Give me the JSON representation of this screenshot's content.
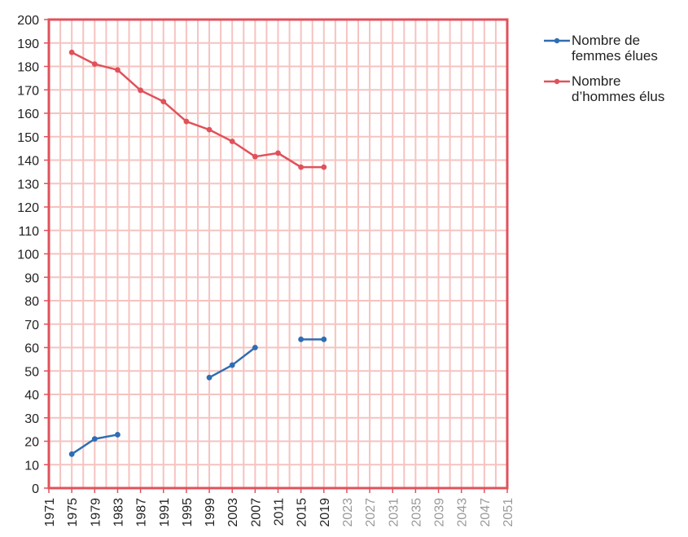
{
  "chart_data": {
    "type": "line",
    "title": "",
    "xlabel": "",
    "ylabel": "",
    "xlim": [
      1971,
      2051
    ],
    "ylim": [
      0,
      200
    ],
    "x_ticks": [
      "1971",
      "1975",
      "1979",
      "1983",
      "1987",
      "1991",
      "1995",
      "1999",
      "2003",
      "2007",
      "2011",
      "2015",
      "2019",
      "2023",
      "2027",
      "2031",
      "2035",
      "2039",
      "2043",
      "2047",
      "2051"
    ],
    "x_ticks_muted_from": 2023,
    "y_ticks": [
      "0",
      "10",
      "20",
      "30",
      "40",
      "50",
      "60",
      "70",
      "80",
      "90",
      "100",
      "110",
      "120",
      "130",
      "140",
      "150",
      "160",
      "170",
      "180",
      "190",
      "200"
    ],
    "grid": true,
    "legend_position": "right",
    "series": [
      {
        "name": "Nombre de femmes élues",
        "color": "#2f6db3",
        "segments": [
          [
            [
              1975,
              14.5
            ],
            [
              1979,
              21
            ],
            [
              1983,
              22.8
            ]
          ],
          [
            [
              1999,
              47.2
            ],
            [
              2003,
              52.5
            ],
            [
              2007,
              60
            ]
          ],
          [
            [
              2015,
              63.5
            ],
            [
              2019,
              63.5
            ]
          ]
        ]
      },
      {
        "name": "Nombre d’hommes élus",
        "color": "#e0525b",
        "segments": [
          [
            [
              1975,
              186
            ],
            [
              1979,
              181
            ],
            [
              1983,
              178.5
            ],
            [
              1987,
              169.8
            ],
            [
              1991,
              165
            ],
            [
              1995,
              156.5
            ],
            [
              1999,
              153
            ],
            [
              2003,
              148
            ],
            [
              2007,
              141.5
            ],
            [
              2011,
              143
            ],
            [
              2015,
              137
            ],
            [
              2019,
              137
            ]
          ]
        ]
      }
    ]
  }
}
